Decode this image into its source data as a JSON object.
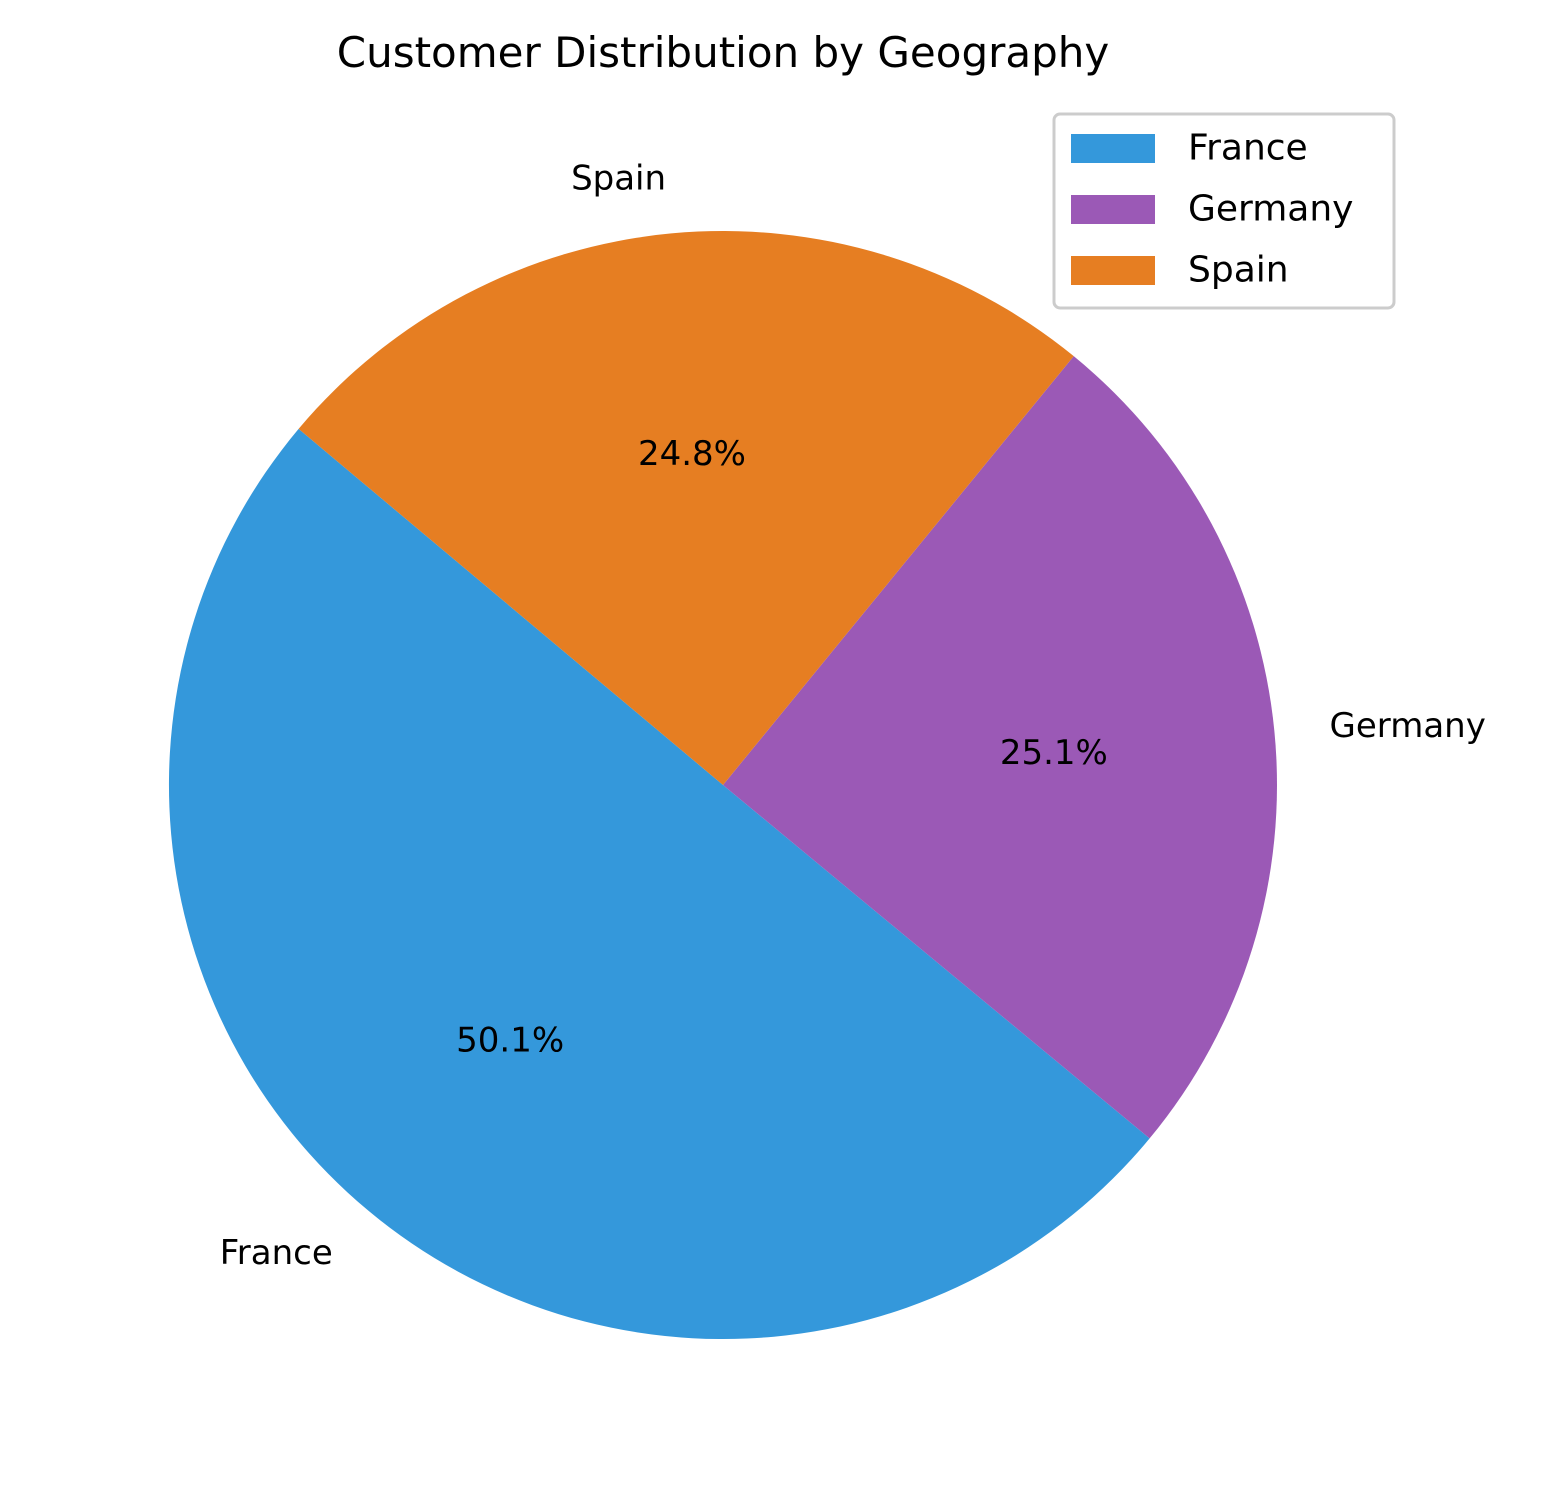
{
  "chart_data": {
    "type": "pie",
    "title": "Customer Distribution by Geography",
    "categories": [
      "France",
      "Germany",
      "Spain"
    ],
    "values": [
      50.1,
      25.1,
      24.8
    ],
    "percent_labels": [
      "50.1%",
      "25.1%",
      "24.8%"
    ],
    "colors": [
      "#3498db",
      "#9b59b6",
      "#e67e22"
    ],
    "start_angle_deg": 140,
    "direction": "counterclockwise",
    "legend": {
      "placement": "top-right",
      "entries": [
        "France",
        "Germany",
        "Spain"
      ]
    }
  }
}
